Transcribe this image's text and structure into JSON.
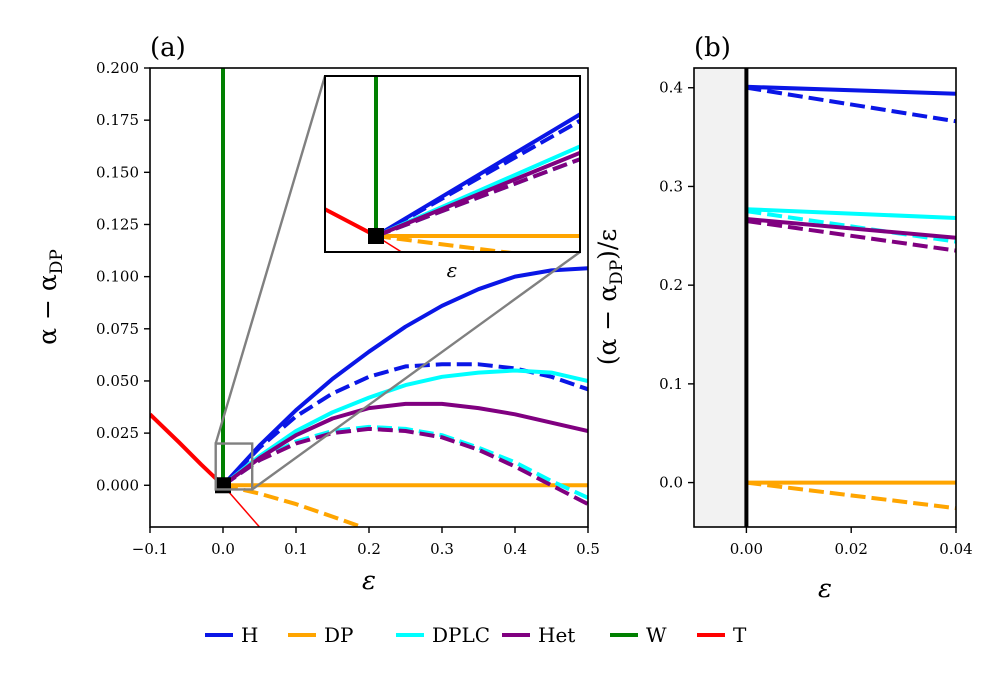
{
  "chart_data": [
    {
      "panel_label": "(a)",
      "type": "line",
      "xlabel": "ε",
      "ylabel": "α − α",
      "ylabel_sub": "DP",
      "xlim": [
        -0.1,
        0.5
      ],
      "ylim": [
        -0.02,
        0.2
      ],
      "xticks": [
        -0.1,
        0.0,
        0.1,
        0.2,
        0.3,
        0.4,
        0.5
      ],
      "xtick_labels": [
        "−0.1",
        "0.0",
        "0.1",
        "0.2",
        "0.3",
        "0.4",
        "0.5"
      ],
      "yticks": [
        0.0,
        0.025,
        0.05,
        0.075,
        0.1,
        0.125,
        0.15,
        0.175,
        0.2
      ],
      "ytick_labels": [
        "0.000",
        "0.025",
        "0.050",
        "0.075",
        "0.100",
        "0.125",
        "0.150",
        "0.175",
        "0.200"
      ],
      "series": [
        {
          "name": "W",
          "style": "solid",
          "x": [
            0,
            0
          ],
          "y": [
            0,
            0.2
          ]
        },
        {
          "name": "T",
          "style": "solid-thick",
          "x": [
            -0.1,
            -0.06,
            -0.03,
            0.0
          ],
          "y": [
            0.034,
            0.0205,
            0.01,
            0
          ]
        },
        {
          "name": "T",
          "style": "solid-thin",
          "x": [
            0,
            0.05
          ],
          "y": [
            0,
            -0.02
          ]
        },
        {
          "name": "H",
          "style": "solid",
          "x": [
            0,
            0.05,
            0.1,
            0.15,
            0.2,
            0.25,
            0.3,
            0.35,
            0.4,
            0.45,
            0.5
          ],
          "y": [
            0,
            0.019,
            0.036,
            0.051,
            0.064,
            0.076,
            0.086,
            0.094,
            0.1,
            0.103,
            0.104
          ]
        },
        {
          "name": "H",
          "style": "dashed",
          "x": [
            0,
            0.05,
            0.1,
            0.15,
            0.2,
            0.25,
            0.3,
            0.35,
            0.4,
            0.45,
            0.5
          ],
          "y": [
            0,
            0.018,
            0.033,
            0.044,
            0.052,
            0.057,
            0.058,
            0.058,
            0.056,
            0.052,
            0.046
          ]
        },
        {
          "name": "DP",
          "style": "solid",
          "x": [
            0,
            0.5
          ],
          "y": [
            0,
            0
          ]
        },
        {
          "name": "DP",
          "style": "dashed",
          "x": [
            0,
            0.05,
            0.1,
            0.15,
            0.19
          ],
          "y": [
            0,
            -0.004,
            -0.009,
            -0.015,
            -0.02
          ]
        },
        {
          "name": "DPLC",
          "style": "solid",
          "x": [
            0,
            0.05,
            0.1,
            0.15,
            0.2,
            0.25,
            0.3,
            0.35,
            0.4,
            0.45,
            0.5
          ],
          "y": [
            0,
            0.014,
            0.026,
            0.035,
            0.042,
            0.048,
            0.052,
            0.054,
            0.055,
            0.054,
            0.05
          ]
        },
        {
          "name": "DPLC",
          "style": "dashed",
          "x": [
            0,
            0.05,
            0.1,
            0.15,
            0.2,
            0.25,
            0.3,
            0.35,
            0.4,
            0.45,
            0.5
          ],
          "y": [
            0,
            0.012,
            0.021,
            0.026,
            0.028,
            0.027,
            0.024,
            0.018,
            0.011,
            0.002,
            -0.006
          ]
        },
        {
          "name": "Het",
          "style": "solid",
          "x": [
            0,
            0.05,
            0.1,
            0.15,
            0.2,
            0.25,
            0.3,
            0.35,
            0.4,
            0.45,
            0.5
          ],
          "y": [
            0,
            0.013,
            0.024,
            0.032,
            0.037,
            0.039,
            0.039,
            0.037,
            0.034,
            0.03,
            0.026
          ]
        },
        {
          "name": "Het",
          "style": "dashed",
          "x": [
            0,
            0.05,
            0.1,
            0.15,
            0.2,
            0.25,
            0.3,
            0.35,
            0.4,
            0.45,
            0.5
          ],
          "y": [
            0,
            0.012,
            0.02,
            0.025,
            0.027,
            0.026,
            0.023,
            0.017,
            0.009,
            0.0,
            -0.009
          ]
        }
      ],
      "marker": {
        "x": 0,
        "y": 0
      },
      "inset": {
        "xlabel": "ε",
        "xlim": [
          -0.01,
          0.04
        ],
        "ylim": [
          -0.002,
          0.02
        ],
        "zoom_box_x": [
          -0.01,
          0.04
        ],
        "zoom_box_y": [
          -0.002,
          0.02
        ]
      }
    },
    {
      "panel_label": "(b)",
      "type": "line",
      "xlabel": "ε",
      "ylabel": "(α − α",
      "ylabel_sub": "DP",
      "ylabel_tail": ")/ε",
      "xlim": [
        -0.01,
        0.04
      ],
      "ylim": [
        -0.045,
        0.42
      ],
      "xticks": [
        0.0,
        0.02,
        0.04
      ],
      "xtick_labels": [
        "0.00",
        "0.02",
        "0.04"
      ],
      "yticks": [
        0.0,
        0.1,
        0.2,
        0.3,
        0.4
      ],
      "ytick_labels": [
        "0.0",
        "0.1",
        "0.2",
        "0.3",
        "0.4"
      ],
      "series": [
        {
          "name": "H",
          "style": "solid",
          "x": [
            0,
            0.04
          ],
          "y": [
            0.401,
            0.394
          ]
        },
        {
          "name": "H",
          "style": "dashed",
          "x": [
            0,
            0.04
          ],
          "y": [
            0.4,
            0.366
          ]
        },
        {
          "name": "DPLC",
          "style": "solid",
          "x": [
            0,
            0.04
          ],
          "y": [
            0.277,
            0.268
          ]
        },
        {
          "name": "DPLC",
          "style": "dashed",
          "x": [
            0,
            0.04
          ],
          "y": [
            0.275,
            0.244
          ]
        },
        {
          "name": "Het",
          "style": "solid",
          "x": [
            0,
            0.04
          ],
          "y": [
            0.267,
            0.248
          ]
        },
        {
          "name": "Het",
          "style": "dashed",
          "x": [
            0,
            0.04
          ],
          "y": [
            0.265,
            0.235
          ]
        },
        {
          "name": "DP",
          "style": "solid",
          "x": [
            0,
            0.04
          ],
          "y": [
            0,
            0
          ]
        },
        {
          "name": "DP",
          "style": "dashed",
          "x": [
            0,
            0.04
          ],
          "y": [
            0,
            -0.026
          ]
        },
        {
          "name": "W",
          "style": "solid",
          "x": [
            0,
            0
          ],
          "y": [
            -0.045,
            0.42
          ]
        }
      ]
    }
  ],
  "legend": {
    "position": "bottom",
    "items": [
      {
        "label": "H",
        "color": "#0a16e6"
      },
      {
        "label": "DP",
        "color": "#ffa500"
      },
      {
        "label": "DPLC",
        "color": "#00ffff"
      },
      {
        "label": "Het",
        "color": "#800080"
      },
      {
        "label": "W",
        "color": "#008000"
      },
      {
        "label": "T",
        "color": "#ff0000"
      }
    ]
  },
  "colors": {
    "H": "#0a16e6",
    "DP": "#ffa500",
    "DPLC": "#00ffff",
    "Het": "#800080",
    "W": "#008000",
    "T": "#ff0000",
    "W_panel_b": "#000000",
    "panel_b_shade": "#f2f2f2",
    "zoom_box": "#808080"
  }
}
